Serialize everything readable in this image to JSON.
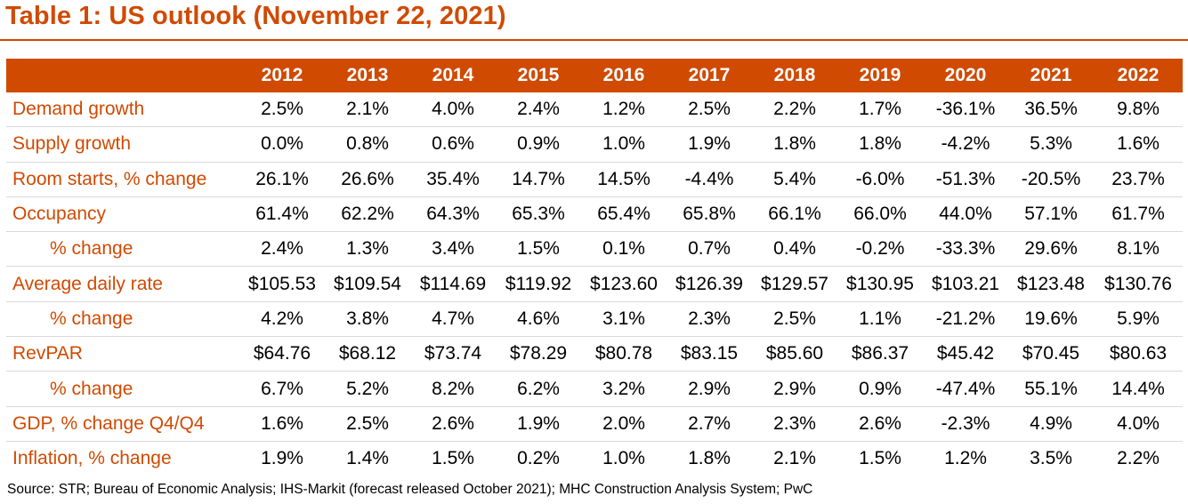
{
  "title": "Table 1: US outlook (November 22, 2021)",
  "table": {
    "columns": [
      "",
      "2012",
      "2013",
      "2014",
      "2015",
      "2016",
      "2017",
      "2018",
      "2019",
      "2020",
      "2021",
      "2022"
    ],
    "rows": [
      {
        "label": "Demand growth",
        "sub": false,
        "values": [
          "2.5%",
          "2.1%",
          "4.0%",
          "2.4%",
          "1.2%",
          "2.5%",
          "2.2%",
          "1.7%",
          "-36.1%",
          "36.5%",
          "9.8%"
        ]
      },
      {
        "label": "Supply growth",
        "sub": false,
        "values": [
          "0.0%",
          "0.8%",
          "0.6%",
          "0.9%",
          "1.0%",
          "1.9%",
          "1.8%",
          "1.8%",
          "-4.2%",
          "5.3%",
          "1.6%"
        ]
      },
      {
        "label": "Room starts, % change",
        "sub": false,
        "values": [
          "26.1%",
          "26.6%",
          "35.4%",
          "14.7%",
          "14.5%",
          "-4.4%",
          "5.4%",
          "-6.0%",
          "-51.3%",
          "-20.5%",
          "23.7%"
        ]
      },
      {
        "label": "Occupancy",
        "sub": false,
        "values": [
          "61.4%",
          "62.2%",
          "64.3%",
          "65.3%",
          "65.4%",
          "65.8%",
          "66.1%",
          "66.0%",
          "44.0%",
          "57.1%",
          "61.7%"
        ]
      },
      {
        "label": "% change",
        "sub": true,
        "values": [
          "2.4%",
          "1.3%",
          "3.4%",
          "1.5%",
          "0.1%",
          "0.7%",
          "0.4%",
          "-0.2%",
          "-33.3%",
          "29.6%",
          "8.1%"
        ]
      },
      {
        "label": "Average daily rate",
        "sub": false,
        "values": [
          "$105.53",
          "$109.54",
          "$114.69",
          "$119.92",
          "$123.60",
          "$126.39",
          "$129.57",
          "$130.95",
          "$103.21",
          "$123.48",
          "$130.76"
        ]
      },
      {
        "label": "% change",
        "sub": true,
        "values": [
          "4.2%",
          "3.8%",
          "4.7%",
          "4.6%",
          "3.1%",
          "2.3%",
          "2.5%",
          "1.1%",
          "-21.2%",
          "19.6%",
          "5.9%"
        ]
      },
      {
        "label": "RevPAR",
        "sub": false,
        "values": [
          "$64.76",
          "$68.12",
          "$73.74",
          "$78.29",
          "$80.78",
          "$83.15",
          "$85.60",
          "$86.37",
          "$45.42",
          "$70.45",
          "$80.63"
        ]
      },
      {
        "label": "% change",
        "sub": true,
        "values": [
          "6.7%",
          "5.2%",
          "8.2%",
          "6.2%",
          "3.2%",
          "2.9%",
          "2.9%",
          "0.9%",
          "-47.4%",
          "55.1%",
          "14.4%"
        ]
      },
      {
        "label": "GDP, % change Q4/Q4",
        "sub": false,
        "values": [
          "1.6%",
          "2.5%",
          "2.6%",
          "1.9%",
          "2.0%",
          "2.7%",
          "2.3%",
          "2.6%",
          "-2.3%",
          "4.9%",
          "4.0%"
        ]
      },
      {
        "label": "Inflation, % change",
        "sub": false,
        "values": [
          "1.9%",
          "1.4%",
          "1.5%",
          "0.2%",
          "1.0%",
          "1.8%",
          "2.1%",
          "1.5%",
          "1.2%",
          "3.5%",
          "2.2%"
        ]
      }
    ]
  },
  "source": "Source: STR; Bureau of Economic Analysis; IHS-Markit (forecast released October 2021); MHC Construction Analysis System; PwC",
  "colors": {
    "accent": "#d04a02",
    "header_text": "#ffffff",
    "row_divider": "#d9d9d9"
  }
}
